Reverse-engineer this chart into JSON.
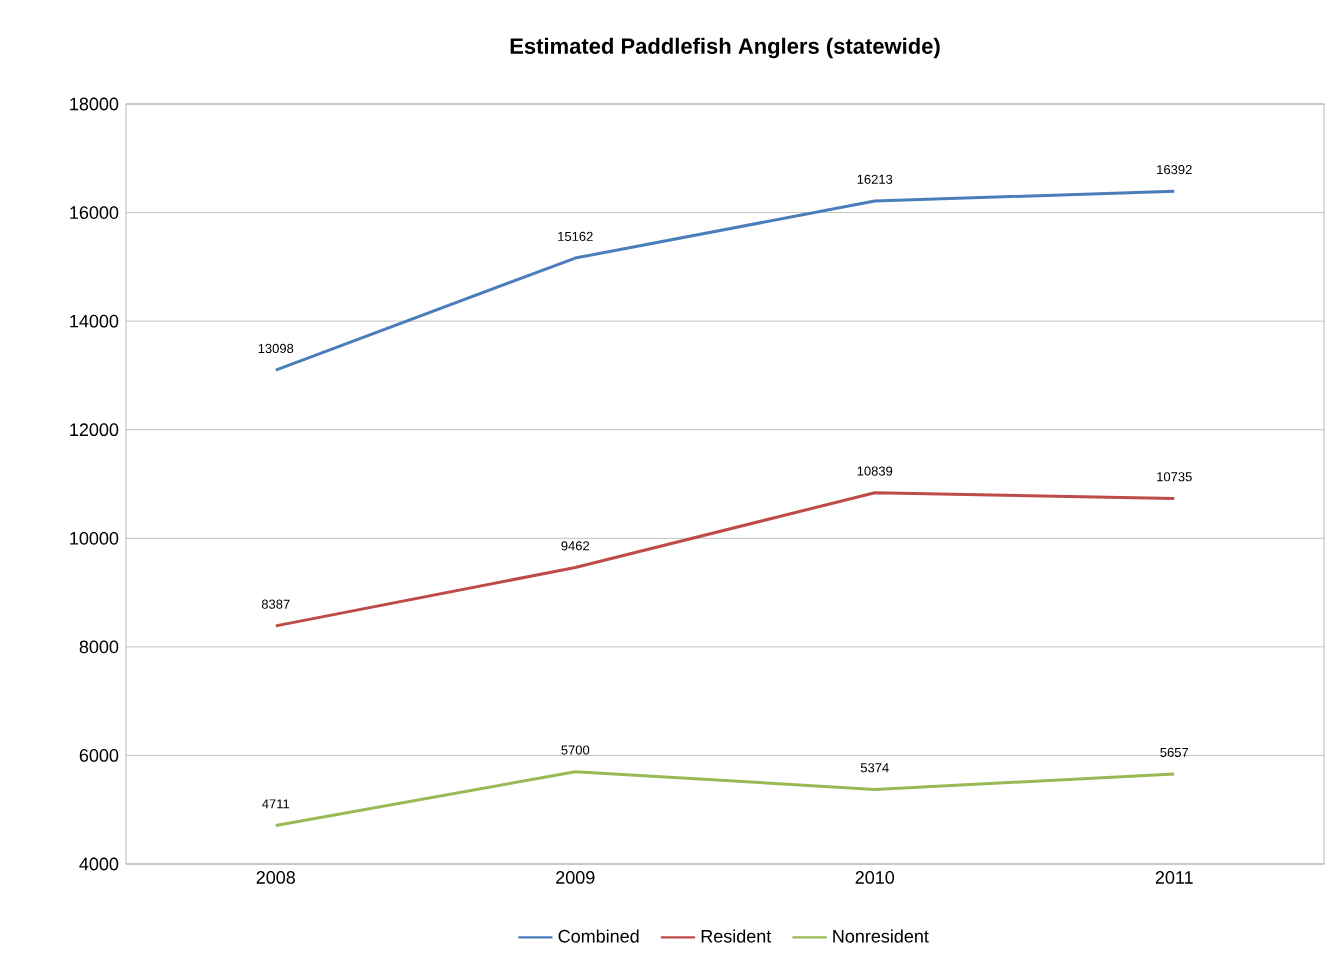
{
  "chart_data": {
    "type": "line",
    "title": "Estimated Paddlefish Anglers (statewide)",
    "categories": [
      "2008",
      "2009",
      "2010",
      "2011"
    ],
    "series": [
      {
        "name": "Combined",
        "color": "#4a7ebb",
        "values": [
          13098,
          15162,
          16213,
          16392
        ]
      },
      {
        "name": "Resident",
        "color": "#be4b48",
        "values": [
          8387,
          9462,
          10839,
          10735
        ]
      },
      {
        "name": "Nonresident",
        "color": "#98b954",
        "values": [
          4711,
          5700,
          5374,
          5657
        ]
      }
    ],
    "ylim": [
      4000,
      18000
    ],
    "yticks": [
      4000,
      6000,
      8000,
      10000,
      12000,
      14000,
      16000,
      18000
    ],
    "grid": "y",
    "legend": "bottom",
    "data_labels": true,
    "marker": "none",
    "line_style": "solid"
  }
}
